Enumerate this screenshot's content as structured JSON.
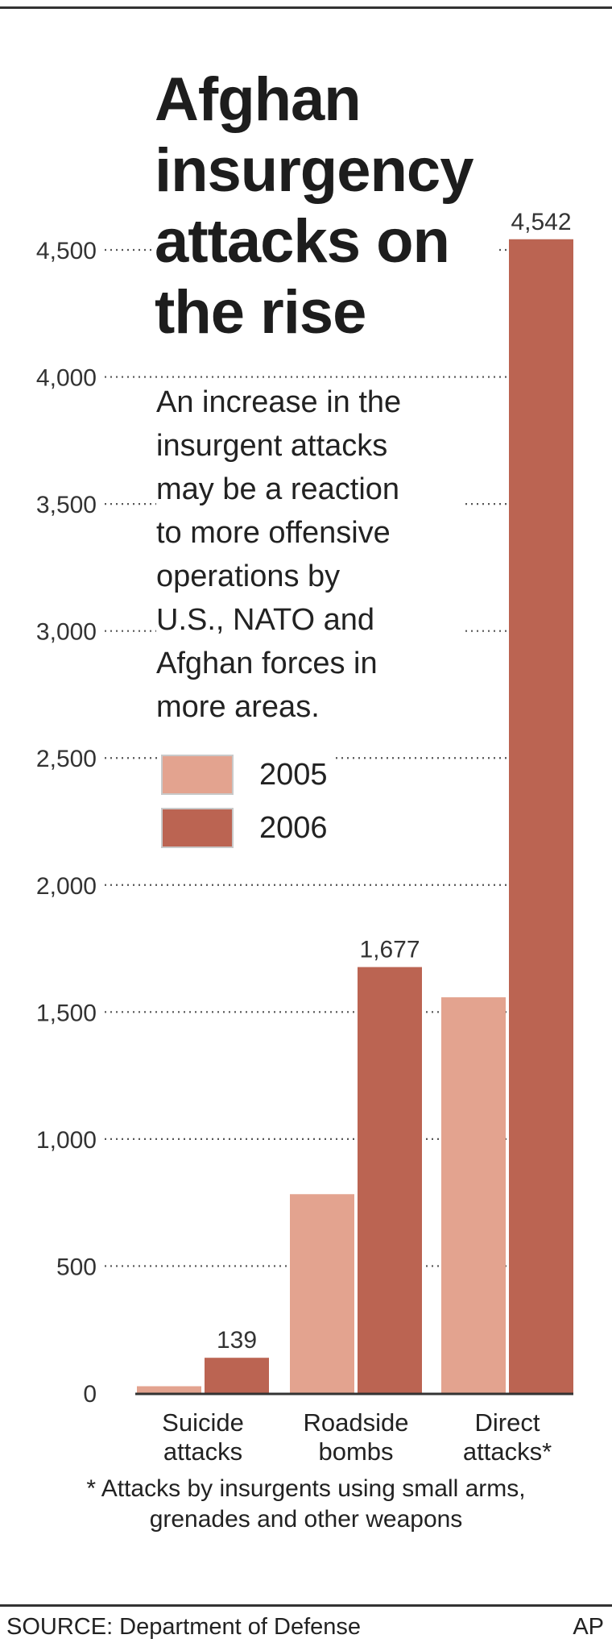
{
  "title_lines": [
    "Afghan",
    "insurgency",
    "attacks on",
    "the rise"
  ],
  "subtitle_lines": [
    "An increase in the",
    "insurgent attacks",
    "may be a reaction",
    "to more offensive",
    "operations by",
    "U.S., NATO and",
    "Afghan forces in",
    "more areas."
  ],
  "legend": [
    {
      "label": "2005",
      "color": "#e3a38f"
    },
    {
      "label": "2006",
      "color": "#bb6452"
    }
  ],
  "footnote_lines": [
    "* Attacks by insurgents using small arms,",
    "grenades and other weapons"
  ],
  "source": "SOURCE: Department of Defense",
  "credit": "AP",
  "chart_data": {
    "type": "bar",
    "categories": [
      [
        "Suicide",
        "attacks"
      ],
      [
        "Roadside",
        "bombs"
      ],
      [
        "Direct",
        "attacks*"
      ]
    ],
    "series": [
      {
        "name": "2005",
        "values": [
          27,
          783,
          1558
        ],
        "color": "#e3a38f"
      },
      {
        "name": "2006",
        "values": [
          139,
          1677,
          4542
        ],
        "color": "#bb6452"
      }
    ],
    "data_labels": [
      "139",
      "1,677",
      "4,542"
    ],
    "ylim": [
      0,
      4500
    ],
    "yticks": [
      0,
      500,
      1000,
      1500,
      2000,
      2500,
      3000,
      3500,
      4000,
      4500
    ],
    "ytick_labels": [
      "0",
      "500",
      "1,000",
      "1,500",
      "2,000",
      "2,500",
      "3,000",
      "3,500",
      "4,000",
      "4,500"
    ],
    "grid": "dotted horizontal",
    "legend_position": "upper-left"
  }
}
